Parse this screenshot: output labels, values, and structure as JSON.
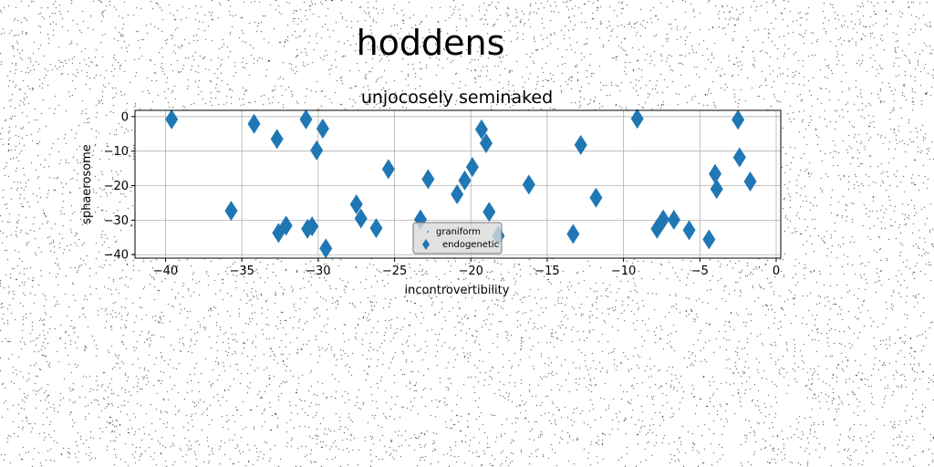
{
  "chart_data": {
    "type": "scatter",
    "suptitle": "hoddens",
    "title": "unjocosely seminaked",
    "xlabel": "incontrovertibility",
    "ylabel": "sphaerosome",
    "xlim": [
      -42,
      0.3
    ],
    "ylim": [
      -41,
      1.8
    ],
    "xticks": [
      -40,
      -35,
      -30,
      -25,
      -20,
      -15,
      -10,
      -5,
      0
    ],
    "yticks": [
      0,
      -10,
      -20,
      -30,
      -40
    ],
    "grid": true,
    "legend_position": "lower center",
    "colors": {
      "marker": "#1f77b4",
      "grid": "#b0b0b0",
      "legend_bg": "#d9d9d9",
      "legend_border": "#777777"
    },
    "series": [
      {
        "name": "graniform",
        "marker": "point",
        "x": [],
        "y": []
      },
      {
        "name": "endogenetic",
        "marker": "diamond",
        "x": [
          -39.6,
          -34.2,
          -32.7,
          -30.8,
          -29.7,
          -30.1,
          -35.7,
          -32.6,
          -32.1,
          -30.7,
          -30.4,
          -29.5,
          -27.2,
          -27.5,
          -26.2,
          -25.4,
          -23.3,
          -22.8,
          -20.9,
          -20.4,
          -19.9,
          -19.3,
          -19.0,
          -18.8,
          -18.2,
          -16.2,
          -13.3,
          -12.8,
          -11.8,
          -9.1,
          -7.8,
          -7.4,
          -6.7,
          -5.7,
          -4.4,
          -4.0,
          -3.9,
          -2.5,
          -2.4,
          -1.7
        ],
        "y": [
          -0.8,
          -2.1,
          -6.5,
          -0.8,
          -3.5,
          -9.8,
          -27.3,
          -33.7,
          -31.6,
          -32.5,
          -31.8,
          -38.2,
          -29.5,
          -25.4,
          -32.3,
          -15.2,
          -29.8,
          -18.1,
          -22.5,
          -18.5,
          -14.6,
          -3.7,
          -7.7,
          -27.6,
          -34.5,
          -19.7,
          -34.0,
          -8.2,
          -23.5,
          -0.6,
          -32.5,
          -29.8,
          -29.9,
          -32.9,
          -35.6,
          -16.6,
          -21.0,
          -0.9,
          -11.8,
          -18.8
        ]
      }
    ]
  }
}
